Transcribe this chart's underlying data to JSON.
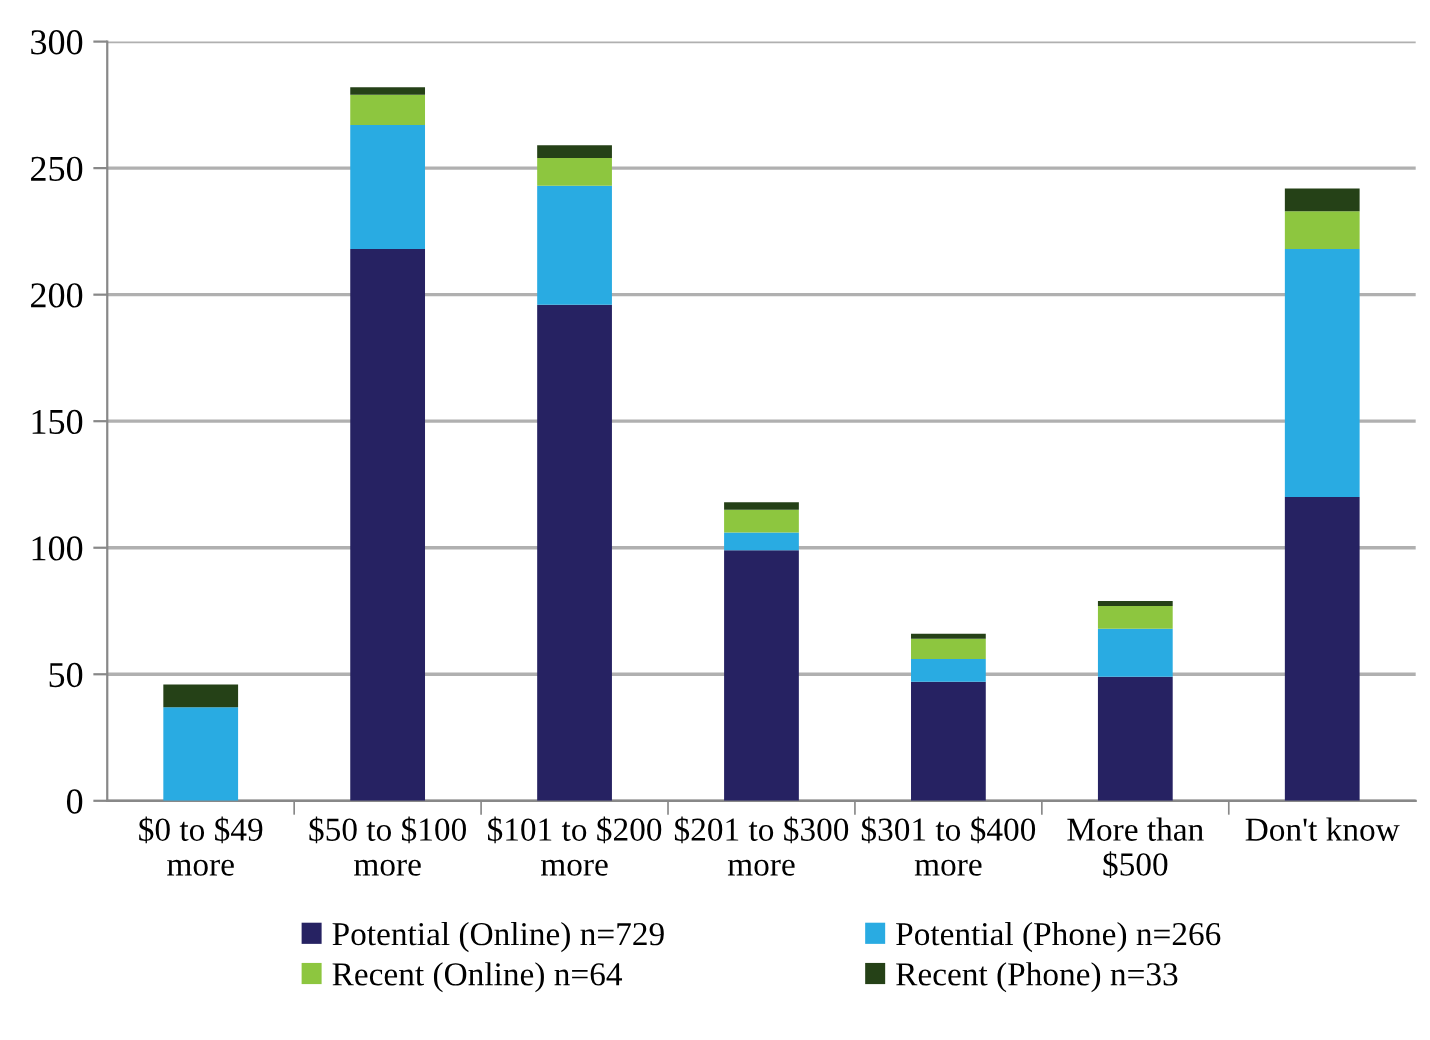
{
  "chart_data": {
    "type": "bar",
    "stacked": true,
    "categories": [
      "$0 to $49\nmore",
      "$50 to $100\nmore",
      "$101 to $200\nmore",
      "$201 to $300\nmore",
      "$301 to $400\nmore",
      "More than\n$500",
      "Don't know"
    ],
    "series": [
      {
        "name": "Potential (Online) n=729",
        "color": "#262262",
        "values": [
          0,
          218,
          196,
          99,
          47,
          49,
          120
        ]
      },
      {
        "name": "Potential (Phone) n=266",
        "color": "#29abe2",
        "values": [
          37,
          49,
          47,
          7,
          9,
          19,
          98
        ]
      },
      {
        "name": "Recent (Online) n=64",
        "color": "#8dc63f",
        "values": [
          0,
          12,
          11,
          9,
          8,
          9,
          15
        ]
      },
      {
        "name": "Recent (Phone) n=33",
        "color": "#254117",
        "values": [
          9,
          3,
          5,
          3,
          2,
          2,
          9
        ]
      }
    ],
    "ylim": [
      0,
      300
    ],
    "yticks": [
      0,
      50,
      100,
      150,
      200,
      250,
      300
    ],
    "grid": "y",
    "legend": "bottom"
  }
}
